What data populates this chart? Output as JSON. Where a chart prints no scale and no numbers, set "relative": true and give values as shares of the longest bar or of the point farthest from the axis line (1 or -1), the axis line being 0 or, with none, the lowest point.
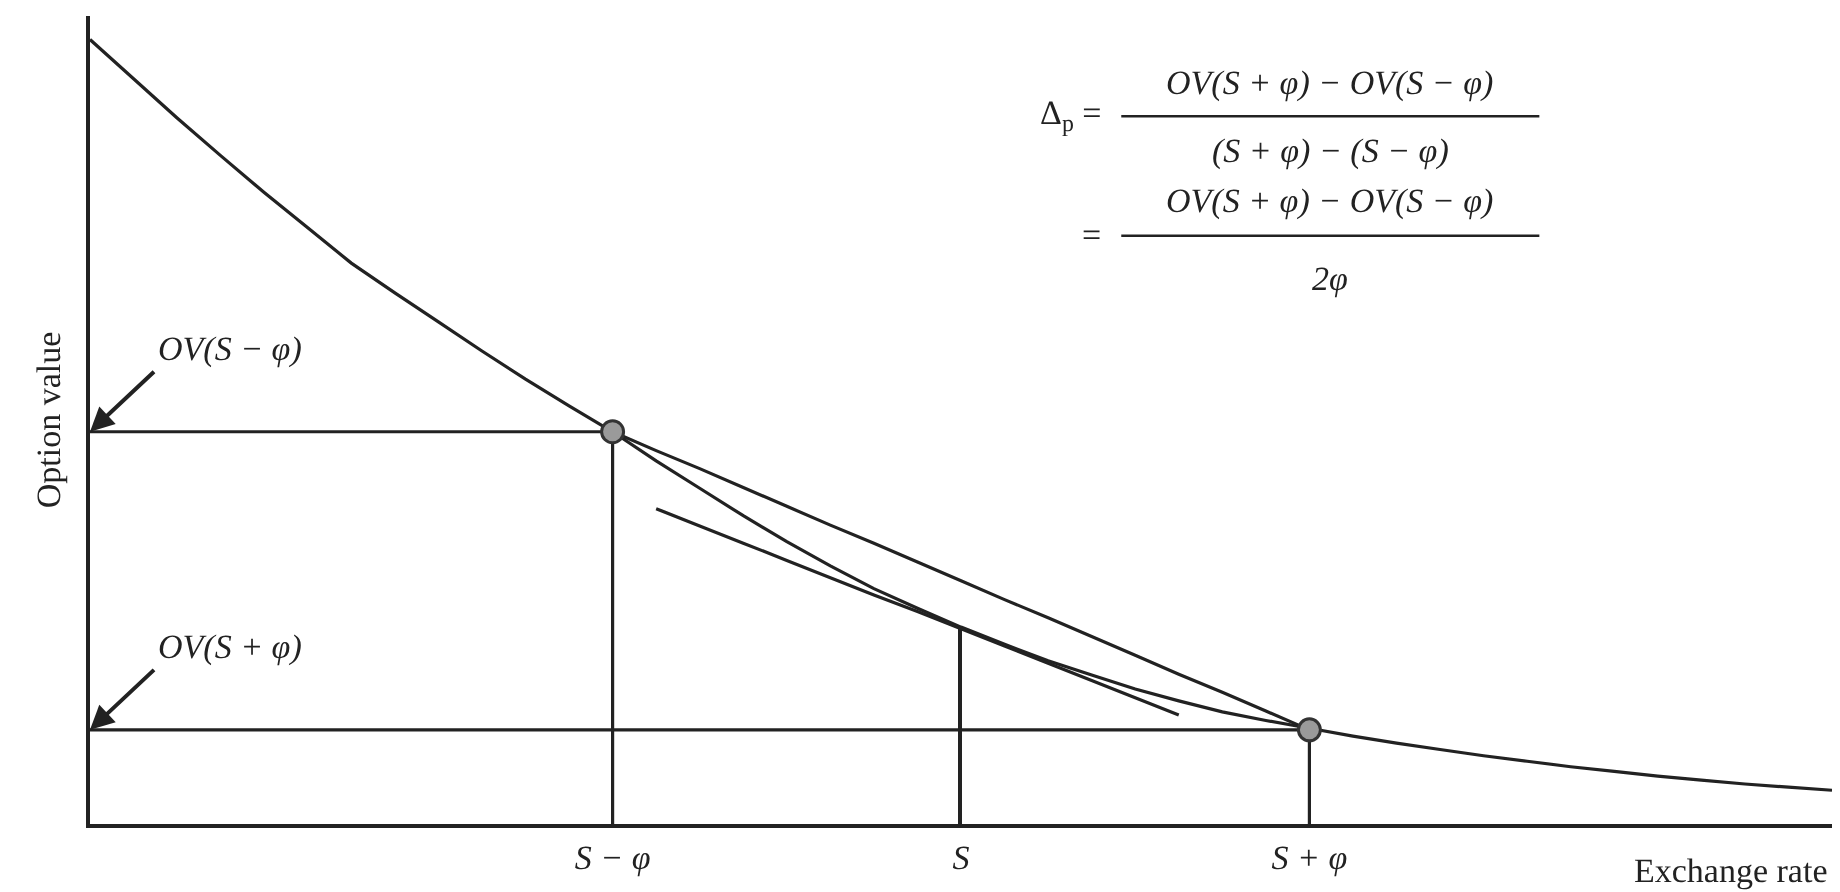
{
  "chart_data": {
    "type": "line",
    "relative": true,
    "xlabel": "Exchange rate",
    "ylabel": "Option value",
    "categories": [
      null,
      null,
      null,
      null,
      null,
      null,
      null,
      null,
      null,
      null,
      null,
      null,
      "S − φ",
      null,
      null,
      null,
      null,
      null,
      null,
      null,
      "S",
      null,
      null,
      null,
      null,
      null,
      null,
      null,
      "S + φ",
      null,
      null,
      null,
      null,
      null,
      null,
      null,
      null,
      null,
      null,
      null,
      null
    ],
    "line_style": "solid",
    "series": [
      {
        "color": "#222222",
        "values": [
          1.0,
          0.95,
          0.9,
          0.852,
          0.805,
          0.76,
          0.715,
          0.677,
          0.64,
          0.603,
          0.567,
          0.533,
          0.5,
          0.463,
          0.428,
          0.393,
          0.36,
          0.329,
          0.3,
          0.275,
          0.251,
          0.229,
          0.208,
          0.19,
          0.172,
          0.157,
          0.143,
          0.132,
          0.122,
          0.112,
          0.103,
          0.095,
          0.087,
          0.08,
          0.073,
          0.067,
          0.061,
          0.056,
          0.051,
          0.047,
          0.043
        ]
      },
      {
        "color": "#222222",
        "values": [
          null,
          null,
          null,
          null,
          null,
          null,
          null,
          null,
          null,
          null,
          null,
          null,
          0.5,
          0.476,
          0.453,
          0.429,
          0.405,
          0.381,
          0.358,
          0.334,
          0.31,
          0.286,
          0.263,
          0.239,
          0.215,
          0.191,
          0.168,
          0.144,
          0.12,
          null,
          null,
          null,
          null,
          null,
          null,
          null,
          null,
          null,
          null,
          null,
          null
        ]
      },
      {
        "color": "#222222",
        "values": [
          null,
          null,
          null,
          null,
          null,
          null,
          null,
          null,
          null,
          null,
          null,
          null,
          null,
          0.402,
          0.38,
          0.358,
          0.336,
          0.314,
          0.292,
          0.271,
          0.249,
          0.227,
          0.205,
          0.183,
          0.161,
          0.139,
          null,
          null,
          null,
          null,
          null,
          null,
          null,
          null,
          null,
          null,
          null,
          null,
          null,
          null,
          null
        ]
      },
      {
        "color": "#222222",
        "values": [
          0.5,
          0.5,
          0.5,
          0.5,
          0.5,
          0.5,
          0.5,
          0.5,
          0.5,
          0.5,
          0.5,
          0.5,
          0.5,
          null,
          null,
          null,
          null,
          null,
          null,
          null,
          null,
          null,
          null,
          null,
          null,
          null,
          null,
          null,
          null,
          null,
          null,
          null,
          null,
          null,
          null,
          null,
          null,
          null,
          null,
          null,
          null
        ]
      },
      {
        "color": "#222222",
        "values": [
          0.12,
          0.12,
          0.12,
          0.12,
          0.12,
          0.12,
          0.12,
          0.12,
          0.12,
          0.12,
          0.12,
          0.12,
          0.12,
          0.12,
          0.12,
          0.12,
          0.12,
          0.12,
          0.12,
          0.12,
          0.12,
          0.12,
          0.12,
          0.12,
          0.12,
          0.12,
          0.12,
          0.12,
          0.12,
          null,
          null,
          null,
          null,
          null,
          null,
          null,
          null,
          null,
          null,
          null,
          null
        ]
      },
      {
        "type": "lollipop",
        "marker": "circle",
        "color": "#9a9a9a",
        "values": [
          null,
          null,
          null,
          null,
          null,
          null,
          null,
          null,
          null,
          null,
          null,
          null,
          0.5,
          null,
          null,
          null,
          null,
          null,
          null,
          null,
          null,
          null,
          null,
          null,
          null,
          null,
          null,
          null,
          0.12,
          null,
          null,
          null,
          null,
          null,
          null,
          null,
          null,
          null,
          null,
          null,
          null
        ]
      },
      {
        "type": "bar",
        "color": "#222222",
        "values": [
          null,
          null,
          null,
          null,
          null,
          null,
          null,
          null,
          null,
          null,
          null,
          null,
          null,
          null,
          null,
          null,
          null,
          null,
          null,
          null,
          0.251,
          null,
          null,
          null,
          null,
          null,
          null,
          null,
          null,
          null,
          null,
          null,
          null,
          null,
          null,
          null,
          null,
          null,
          null,
          null,
          null
        ]
      }
    ],
    "annotations": [
      {
        "text": "OV(S − φ)",
        "y": 0.5
      },
      {
        "text": "OV(S + φ)",
        "y": 0.12
      },
      "Δ$_{p}$ =",
      "OV(S + φ) − OV(S − φ)",
      "(S + φ) − (S − φ)",
      "=",
      "OV(S + φ) − OV(S − φ)",
      "2φ"
    ]
  }
}
